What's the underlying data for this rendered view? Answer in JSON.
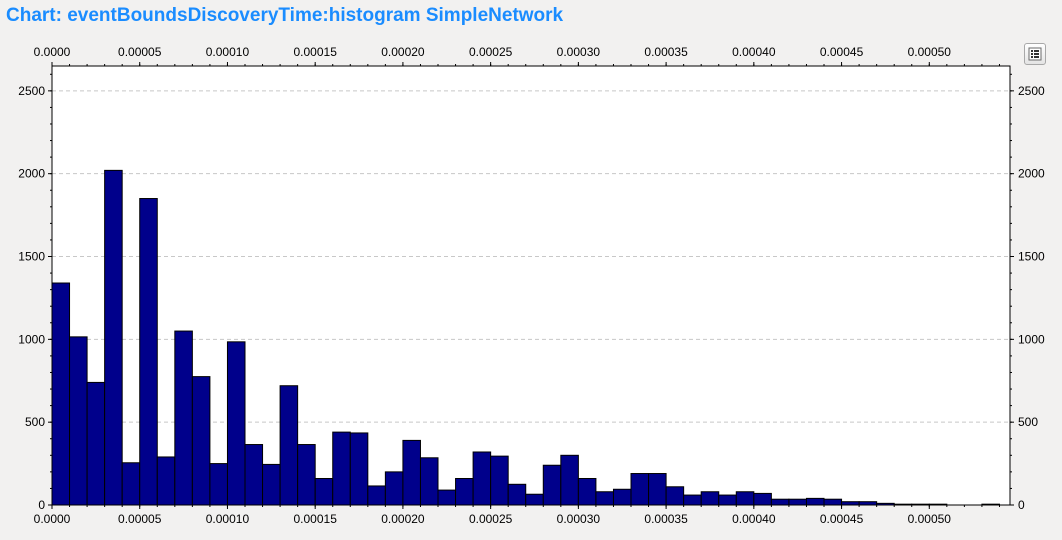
{
  "title": "Chart: eventBoundsDiscoveryTime:histogram SimpleNetwork",
  "legend_button": {
    "icon": "legend-list-icon"
  },
  "colors": {
    "bar_fill": "#00008b",
    "bar_stroke": "#000000",
    "grid": "#c8c8c8",
    "plot_background": "#ffffff",
    "page_background": "#f2f1f0",
    "title": "#1a8cff"
  },
  "chart_data": {
    "type": "bar",
    "title": "Chart: eventBoundsDiscoveryTime:histogram SimpleNetwork",
    "xlabel": "",
    "ylabel": "",
    "xlim": [
      0,
      0.000546
    ],
    "ylim": [
      0,
      2650
    ],
    "grid": true,
    "x_ticks": [
      "0.0000",
      "0.00005",
      "0.00010",
      "0.00015",
      "0.00020",
      "0.00025",
      "0.00030",
      "0.00035",
      "0.00040",
      "0.00045",
      "0.00050"
    ],
    "y_ticks": [
      "0",
      "500",
      "1000",
      "1500",
      "2000",
      "2500"
    ],
    "bin_width": 1e-05,
    "bin_starts": [
      0.0,
      1e-05,
      2e-05,
      3e-05,
      4e-05,
      5e-05,
      6e-05,
      7e-05,
      8e-05,
      9e-05,
      0.0001,
      0.00011,
      0.00012,
      0.00013,
      0.00014,
      0.00015,
      0.00016,
      0.00017,
      0.00018,
      0.00019,
      0.0002,
      0.00021,
      0.00022,
      0.00023,
      0.00024,
      0.00025,
      0.00026,
      0.00027,
      0.00028,
      0.00029,
      0.0003,
      0.00031,
      0.00032,
      0.00033,
      0.00034,
      0.00035,
      0.00036,
      0.00037,
      0.00038,
      0.00039,
      0.0004,
      0.00041,
      0.00042,
      0.00043,
      0.00044,
      0.00045,
      0.00046,
      0.00047,
      0.00048,
      0.00049,
      0.0005,
      0.00051,
      0.00052,
      0.00053
    ],
    "values": [
      1340,
      1015,
      740,
      2020,
      255,
      1850,
      290,
      1050,
      775,
      250,
      985,
      365,
      245,
      720,
      365,
      160,
      440,
      435,
      115,
      200,
      390,
      285,
      90,
      160,
      320,
      295,
      125,
      65,
      240,
      300,
      160,
      80,
      95,
      190,
      190,
      110,
      60,
      80,
      60,
      80,
      70,
      35,
      35,
      40,
      35,
      20,
      20,
      10,
      5,
      5,
      5,
      0,
      0,
      5
    ]
  }
}
